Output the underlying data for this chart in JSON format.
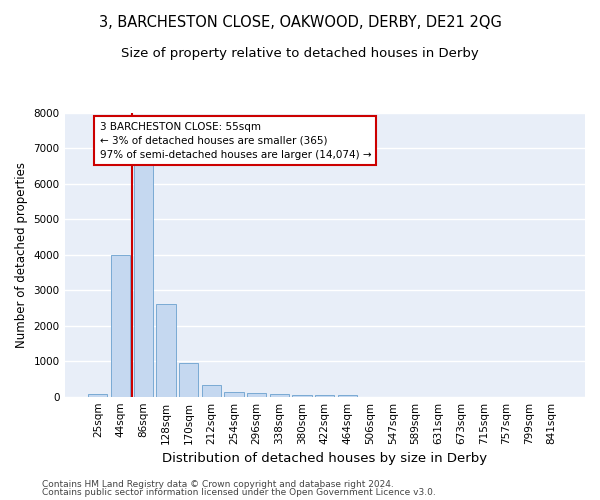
{
  "title1": "3, BARCHESTON CLOSE, OAKWOOD, DERBY, DE21 2QG",
  "title2": "Size of property relative to detached houses in Derby",
  "xlabel": "Distribution of detached houses by size in Derby",
  "ylabel": "Number of detached properties",
  "categories": [
    "25sqm",
    "44sqm",
    "86sqm",
    "128sqm",
    "170sqm",
    "212sqm",
    "254sqm",
    "296sqm",
    "338sqm",
    "380sqm",
    "422sqm",
    "464sqm",
    "506sqm",
    "547sqm",
    "589sqm",
    "631sqm",
    "673sqm",
    "715sqm",
    "757sqm",
    "799sqm",
    "841sqm"
  ],
  "values": [
    80,
    4000,
    6550,
    2600,
    950,
    330,
    145,
    110,
    75,
    60,
    60,
    50,
    0,
    0,
    0,
    0,
    0,
    0,
    0,
    0,
    0
  ],
  "bar_color": "#c5d8f0",
  "bar_edge_color": "#7aaad4",
  "vline_color": "#cc0000",
  "annotation_text": "3 BARCHESTON CLOSE: 55sqm\n← 3% of detached houses are smaller (365)\n97% of semi-detached houses are larger (14,074) →",
  "annotation_box_color": "#ffffff",
  "annotation_box_edge": "#cc0000",
  "ylim": [
    0,
    8000
  ],
  "yticks": [
    0,
    1000,
    2000,
    3000,
    4000,
    5000,
    6000,
    7000,
    8000
  ],
  "background_color": "#e8eef8",
  "grid_color": "#ffffff",
  "footer1": "Contains HM Land Registry data © Crown copyright and database right 2024.",
  "footer2": "Contains public sector information licensed under the Open Government Licence v3.0.",
  "title1_fontsize": 10.5,
  "title2_fontsize": 9.5,
  "xlabel_fontsize": 9.5,
  "ylabel_fontsize": 8.5,
  "tick_fontsize": 7.5,
  "footer_fontsize": 6.5,
  "annot_fontsize": 7.5
}
